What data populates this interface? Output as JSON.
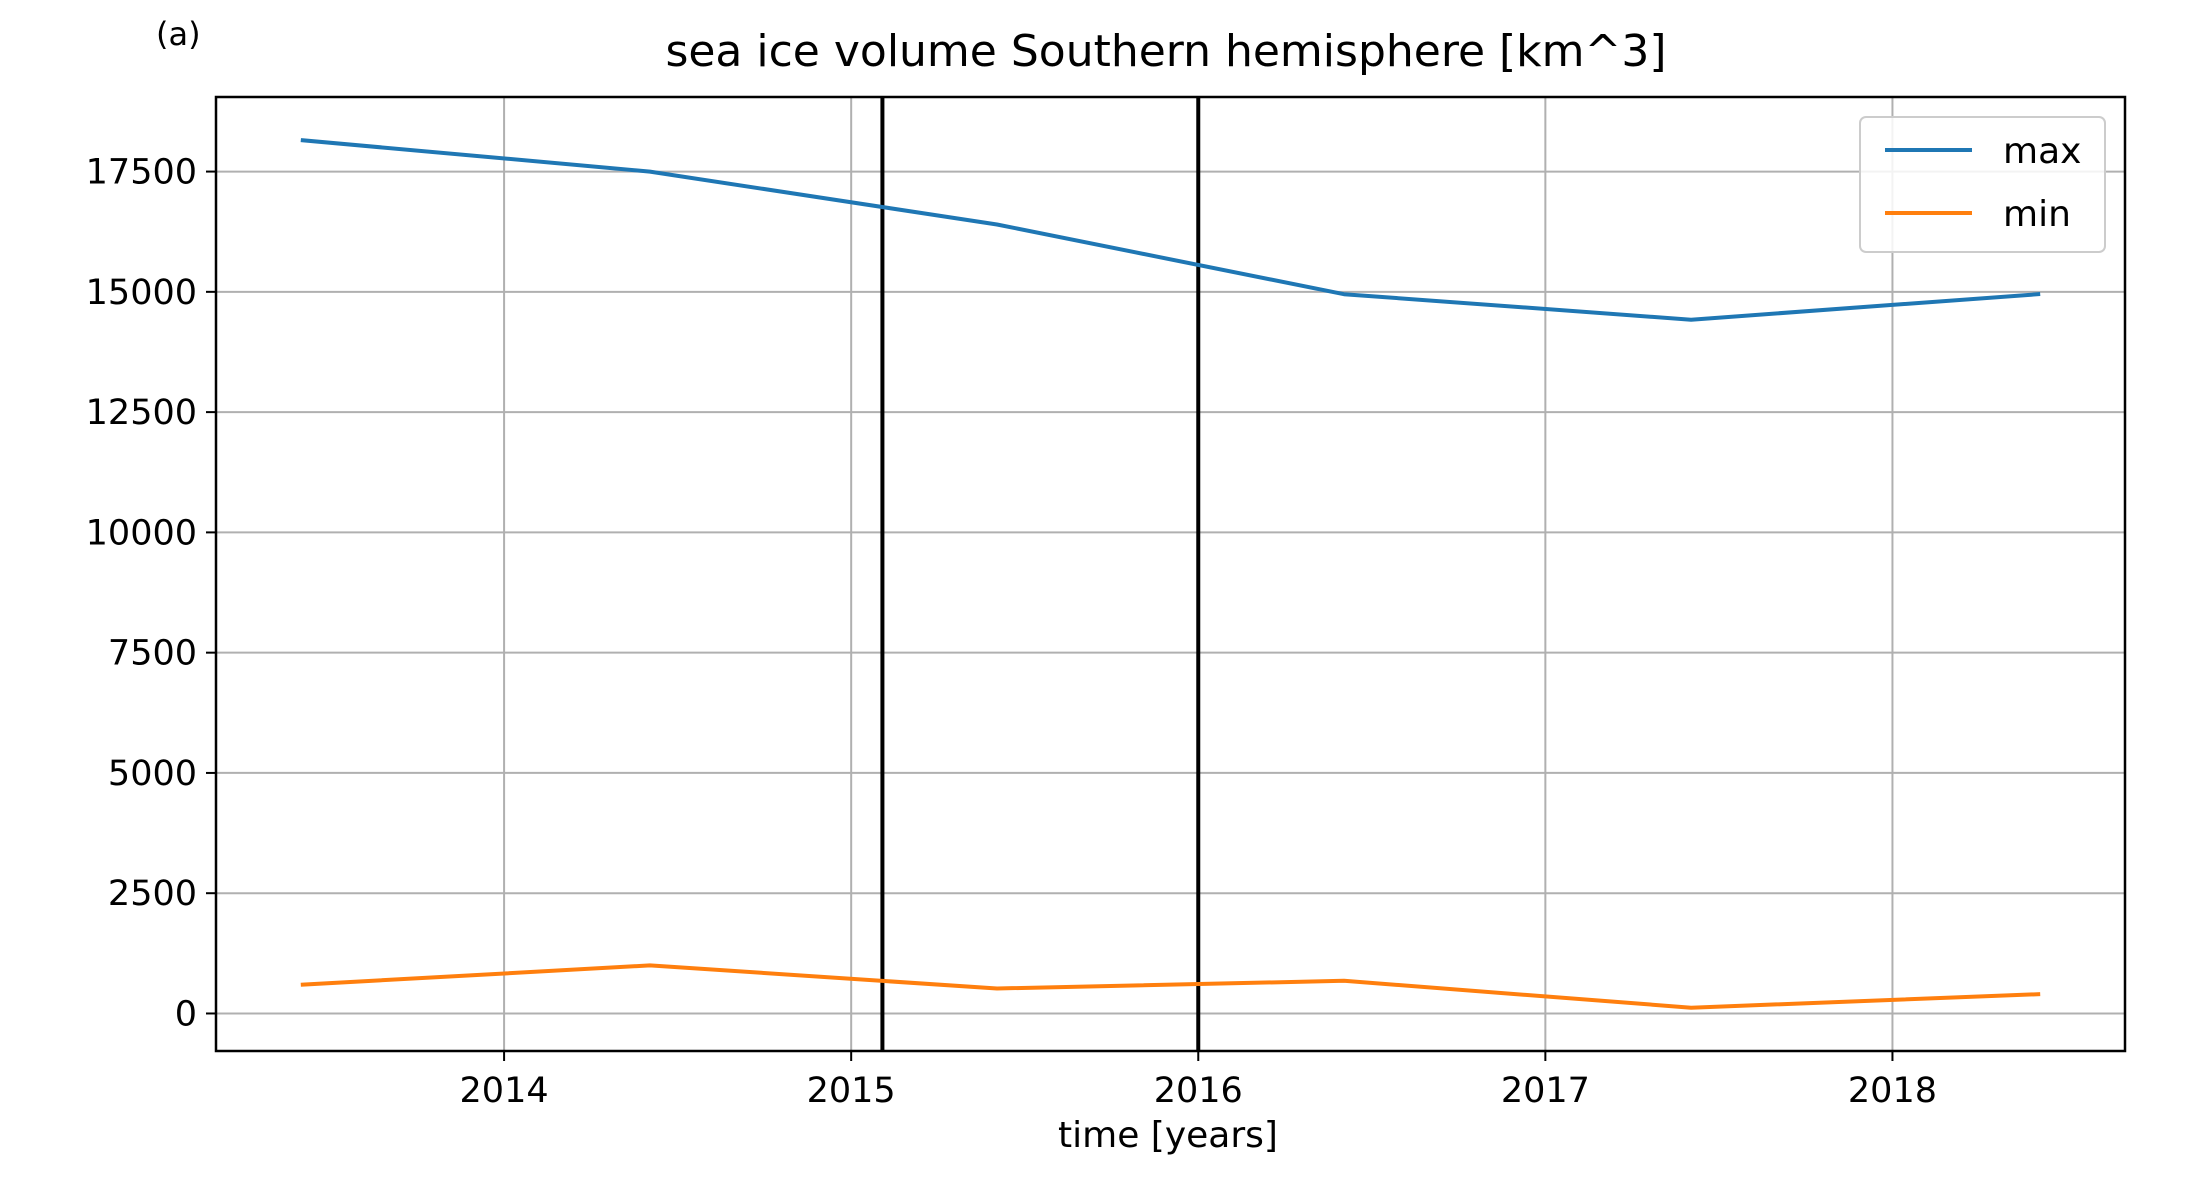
{
  "panel_label": "(a)",
  "chart_data": {
    "type": "line",
    "title": "sea ice volume Southern hemisphere [km^3]",
    "xlabel": "time [years]",
    "ylabel": "",
    "xlim": [
      2013.17,
      2018.67
    ],
    "ylim": [
      -780,
      19050
    ],
    "x_ticks": [
      2014,
      2015,
      2016,
      2017,
      2018
    ],
    "x_tick_labels": [
      "2014",
      "2015",
      "2016",
      "2017",
      "2018"
    ],
    "y_ticks": [
      0,
      2500,
      5000,
      7500,
      10000,
      12500,
      15000,
      17500
    ],
    "y_tick_labels": [
      "0",
      "2500",
      "5000",
      "7500",
      "10000",
      "12500",
      "15000",
      "17500"
    ],
    "x": [
      2013.42,
      2014.42,
      2015.42,
      2016.42,
      2017.42,
      2018.42
    ],
    "series": [
      {
        "name": "max",
        "color": "#1f77b4",
        "values": [
          18150,
          17500,
          16400,
          14950,
          14420,
          14950
        ]
      },
      {
        "name": "min",
        "color": "#ff7f0e",
        "values": [
          600,
          1000,
          520,
          680,
          120,
          400
        ]
      }
    ],
    "vertical_lines": [
      {
        "x": 2015.09,
        "color": "#000000"
      },
      {
        "x": 2016.0,
        "color": "#000000"
      }
    ],
    "grid": true,
    "legend_position": "top-right"
  }
}
